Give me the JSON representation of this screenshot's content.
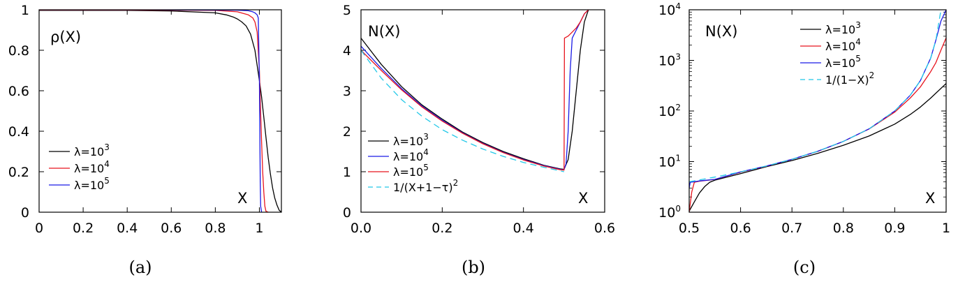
{
  "chart_data": [
    {
      "id": "a",
      "type": "line",
      "caption": "(a)",
      "ylabel": "ρ(X)",
      "xlabel": "X",
      "xlim": [
        0,
        1.1
      ],
      "ylim": [
        0,
        1
      ],
      "xticks": [
        0,
        0.2,
        0.4,
        0.6,
        0.8,
        1
      ],
      "xtick_labels": [
        "0",
        "0.2",
        "0.4",
        "0.6",
        "0.8",
        "1"
      ],
      "yticks": [
        0,
        0.2,
        0.4,
        0.6,
        0.8,
        1
      ],
      "ytick_labels": [
        "0",
        "0.2",
        "0.4",
        "0.6",
        "0.8",
        "1"
      ],
      "legend_position": "lower-left",
      "series": [
        {
          "name": "λ=10^3",
          "base": "λ=10",
          "exp": "3",
          "color": "#000000",
          "dash": "",
          "x": [
            0,
            0.2,
            0.4,
            0.6,
            0.8,
            0.85,
            0.88,
            0.9,
            0.92,
            0.94,
            0.96,
            0.98,
            1.0,
            1.01,
            1.02,
            1.03,
            1.04,
            1.05,
            1.06,
            1.07,
            1.08,
            1.09,
            1.1
          ],
          "y": [
            0.997,
            0.997,
            0.997,
            0.994,
            0.985,
            0.975,
            0.965,
            0.955,
            0.94,
            0.92,
            0.88,
            0.8,
            0.65,
            0.57,
            0.47,
            0.37,
            0.27,
            0.19,
            0.12,
            0.07,
            0.035,
            0.01,
            0.0
          ]
        },
        {
          "name": "λ=10^4",
          "base": "λ=10",
          "exp": "4",
          "color": "#e8141e",
          "dash": "",
          "x": [
            0,
            0.4,
            0.8,
            0.9,
            0.95,
            0.97,
            0.98,
            0.99,
            1.0,
            1.005,
            1.01,
            1.015,
            1.02,
            1.025,
            1.03,
            1.04
          ],
          "y": [
            0.999,
            0.999,
            0.997,
            0.99,
            0.975,
            0.96,
            0.94,
            0.89,
            0.7,
            0.52,
            0.35,
            0.2,
            0.1,
            0.03,
            0.005,
            0.0
          ]
        },
        {
          "name": "λ=10^5",
          "base": "λ=10",
          "exp": "5",
          "color": "#1a1ae6",
          "dash": "",
          "x": [
            0,
            0.5,
            0.9,
            0.95,
            0.97,
            0.98,
            0.99,
            0.995,
            1.0,
            1.002,
            1.004,
            1.006,
            1.01
          ],
          "y": [
            1.0,
            1.0,
            0.998,
            0.995,
            0.99,
            0.985,
            0.975,
            0.96,
            0.65,
            0.4,
            0.15,
            0.03,
            0.0
          ]
        }
      ]
    },
    {
      "id": "b",
      "type": "line",
      "caption": "(b)",
      "ylabel": "N(X)",
      "xlabel": "X",
      "xlim": [
        0,
        0.6
      ],
      "ylim": [
        0,
        5
      ],
      "xticks": [
        0,
        0.2,
        0.4,
        0.6
      ],
      "xtick_labels": [
        "0.0",
        "0.2",
        "0.4",
        "0.6"
      ],
      "yticks": [
        0,
        1,
        2,
        3,
        4,
        5
      ],
      "ytick_labels": [
        "0",
        "1",
        "2",
        "3",
        "4",
        "5"
      ],
      "legend_position": "lower-left",
      "series": [
        {
          "name": "λ=10^3",
          "base": "λ=10",
          "exp": "3",
          "color": "#000000",
          "dash": "",
          "x": [
            0,
            0.05,
            0.1,
            0.15,
            0.2,
            0.25,
            0.3,
            0.35,
            0.4,
            0.45,
            0.49,
            0.5,
            0.51,
            0.52,
            0.53,
            0.54,
            0.55,
            0.56
          ],
          "y": [
            4.3,
            3.65,
            3.1,
            2.65,
            2.3,
            1.98,
            1.72,
            1.5,
            1.32,
            1.16,
            1.07,
            1.06,
            1.3,
            2.0,
            3.0,
            4.0,
            4.7,
            5.0
          ]
        },
        {
          "name": "λ=10^4",
          "base": "λ=10",
          "exp": "4",
          "color": "#1a1ae6",
          "dash": "",
          "x": [
            0,
            0.05,
            0.1,
            0.15,
            0.2,
            0.25,
            0.3,
            0.35,
            0.4,
            0.45,
            0.49,
            0.5,
            0.505,
            0.51,
            0.515,
            0.52,
            0.53,
            0.54,
            0.55,
            0.56
          ],
          "y": [
            4.1,
            3.55,
            3.05,
            2.62,
            2.27,
            1.96,
            1.7,
            1.48,
            1.3,
            1.15,
            1.06,
            1.05,
            1.2,
            2.0,
            3.5,
            4.3,
            4.5,
            4.7,
            4.9,
            5.0
          ]
        },
        {
          "name": "λ=10^5",
          "base": "λ=10",
          "exp": "5",
          "color": "#e8141e",
          "dash": "",
          "x": [
            0,
            0.05,
            0.1,
            0.15,
            0.2,
            0.25,
            0.3,
            0.35,
            0.4,
            0.45,
            0.49,
            0.5,
            0.501,
            0.51,
            0.52,
            0.53,
            0.54,
            0.55,
            0.56
          ],
          "y": [
            4.0,
            3.5,
            3.02,
            2.6,
            2.25,
            1.95,
            1.69,
            1.47,
            1.29,
            1.14,
            1.05,
            1.04,
            4.3,
            4.35,
            4.45,
            4.55,
            4.7,
            4.9,
            5.0
          ]
        },
        {
          "name": "1/(X+1−τ)^2",
          "base": "1/(X+1−τ)",
          "exp": "2",
          "color": "#22c8e8",
          "dash": "9,6",
          "x": [
            0,
            0.05,
            0.1,
            0.15,
            0.2,
            0.25,
            0.3,
            0.35,
            0.4,
            0.45,
            0.5
          ],
          "y": [
            4.0,
            3.31,
            2.78,
            2.37,
            2.04,
            1.78,
            1.56,
            1.38,
            1.23,
            1.11,
            1.0
          ]
        }
      ]
    },
    {
      "id": "c",
      "type": "line",
      "caption": "(c)",
      "ylabel": "N(X)",
      "xlabel": "X",
      "xlim": [
        0.5,
        1
      ],
      "ylim": [
        1,
        10000
      ],
      "yscale": "log",
      "xticks": [
        0.5,
        0.6,
        0.7,
        0.8,
        0.9,
        1
      ],
      "xtick_labels": [
        "0.5",
        "0.6",
        "0.7",
        "0.8",
        "0.9",
        "1"
      ],
      "yticks": [
        1,
        10,
        100,
        1000,
        10000
      ],
      "ytick_labels": [
        {
          "base": "10",
          "exp": "0"
        },
        {
          "base": "10",
          "exp": "1"
        },
        {
          "base": "10",
          "exp": "2"
        },
        {
          "base": "10",
          "exp": "3"
        },
        {
          "base": "10",
          "exp": "4"
        }
      ],
      "legend_position": "top-right",
      "series": [
        {
          "name": "λ=10^3",
          "base": "λ=10",
          "exp": "3",
          "color": "#000000",
          "dash": "",
          "x": [
            0.5,
            0.51,
            0.52,
            0.53,
            0.54,
            0.55,
            0.6,
            0.65,
            0.7,
            0.75,
            0.8,
            0.85,
            0.9,
            0.93,
            0.95,
            0.97,
            1.0
          ],
          "y": [
            1.05,
            1.6,
            2.4,
            3.2,
            3.9,
            4.3,
            5.8,
            7.9,
            10.5,
            14.5,
            21,
            32,
            55,
            85,
            120,
            180,
            350
          ]
        },
        {
          "name": "λ=10^4",
          "base": "λ=10",
          "exp": "4",
          "color": "#e8141e",
          "dash": "",
          "x": [
            0.5,
            0.505,
            0.51,
            0.52,
            0.55,
            0.6,
            0.65,
            0.7,
            0.75,
            0.8,
            0.85,
            0.9,
            0.93,
            0.95,
            0.97,
            0.98,
            0.99,
            1.0
          ],
          "y": [
            1.0,
            2.5,
            3.9,
            4.1,
            4.45,
            6.2,
            8.1,
            11.1,
            15.9,
            25,
            44,
            95,
            180,
            300,
            600,
            900,
            1600,
            2800
          ]
        },
        {
          "name": "λ=10^5",
          "base": "λ=10",
          "exp": "5",
          "color": "#1a1ae6",
          "dash": "",
          "x": [
            0.5,
            0.502,
            0.51,
            0.52,
            0.55,
            0.6,
            0.65,
            0.7,
            0.75,
            0.8,
            0.85,
            0.9,
            0.93,
            0.95,
            0.97,
            0.98,
            0.99,
            1.0
          ],
          "y": [
            3.0,
            3.9,
            4.0,
            4.15,
            4.45,
            6.25,
            8.16,
            11.1,
            16,
            25,
            44.4,
            100,
            204,
            400,
            1111,
            2500,
            6000,
            10000
          ]
        },
        {
          "name": "1/(1−X)^2",
          "base": "1/(1−X)",
          "exp": "2",
          "color": "#22c8e8",
          "dash": "9,6",
          "x": [
            0.5,
            0.55,
            0.6,
            0.65,
            0.7,
            0.75,
            0.8,
            0.85,
            0.9,
            0.93,
            0.95,
            0.97,
            0.98,
            0.99
          ],
          "y": [
            4.0,
            4.94,
            6.25,
            8.16,
            11.1,
            16,
            25,
            44.4,
            100,
            204,
            400,
            1111,
            2500,
            10000
          ]
        }
      ]
    }
  ]
}
